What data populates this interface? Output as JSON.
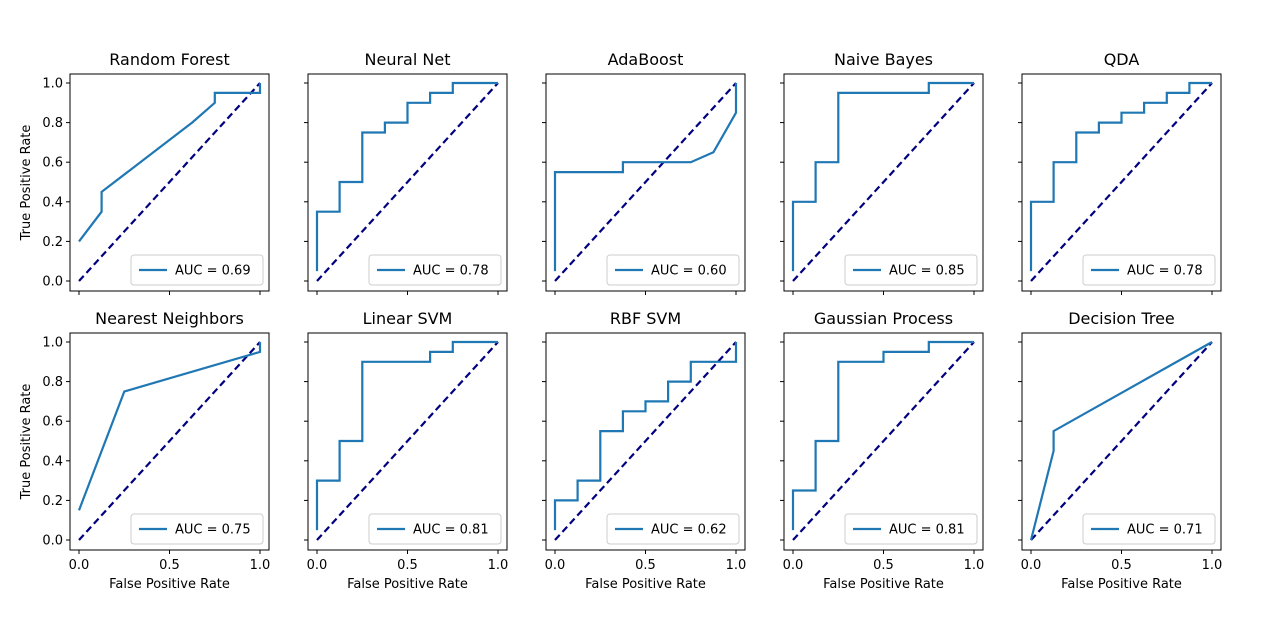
{
  "chart_data": {
    "type": "line",
    "layout": "2x5 grid",
    "xlabel": "False Positive Rate",
    "ylabel": "True Positive Rate",
    "xlim": [
      0,
      1
    ],
    "ylim": [
      0,
      1
    ],
    "xticks": [
      "0.0",
      "0.5",
      "1.0"
    ],
    "yticks": [
      "0.0",
      "0.2",
      "0.4",
      "0.6",
      "0.8",
      "1.0"
    ],
    "grid": false,
    "legend_position": "lower-right",
    "series_color": "#1f77b4",
    "reference_color": "#000080",
    "panels": [
      {
        "title": "Random Forest",
        "legend": "AUC = 0.69",
        "x": [
          0,
          0.125,
          0.125,
          0.625,
          0.75,
          0.75,
          1,
          1
        ],
        "y": [
          0.2,
          0.35,
          0.45,
          0.8,
          0.9,
          0.95,
          0.95,
          1
        ]
      },
      {
        "title": "Neural Net",
        "legend": "AUC = 0.78",
        "x": [
          0,
          0,
          0.125,
          0.125,
          0.25,
          0.25,
          0.375,
          0.375,
          0.5,
          0.5,
          0.625,
          0.625,
          0.75,
          0.75,
          1
        ],
        "y": [
          0.05,
          0.35,
          0.35,
          0.5,
          0.5,
          0.75,
          0.75,
          0.8,
          0.8,
          0.9,
          0.9,
          0.95,
          0.95,
          1,
          1
        ]
      },
      {
        "title": "AdaBoost",
        "legend": "AUC = 0.60",
        "x": [
          0,
          0,
          0.375,
          0.375,
          0.75,
          0.875,
          1,
          1
        ],
        "y": [
          0.05,
          0.55,
          0.55,
          0.6,
          0.6,
          0.65,
          0.85,
          1
        ]
      },
      {
        "title": "Naive Bayes",
        "legend": "AUC = 0.85",
        "x": [
          0,
          0,
          0.125,
          0.125,
          0.25,
          0.25,
          0.75,
          0.75,
          1
        ],
        "y": [
          0.05,
          0.4,
          0.4,
          0.6,
          0.6,
          0.95,
          0.95,
          1,
          1
        ]
      },
      {
        "title": "QDA",
        "legend": "AUC = 0.78",
        "x": [
          0,
          0,
          0.125,
          0.125,
          0.25,
          0.25,
          0.375,
          0.375,
          0.5,
          0.5,
          0.625,
          0.625,
          0.75,
          0.75,
          0.875,
          0.875,
          1
        ],
        "y": [
          0.05,
          0.4,
          0.4,
          0.6,
          0.6,
          0.75,
          0.75,
          0.8,
          0.8,
          0.85,
          0.85,
          0.9,
          0.9,
          0.95,
          0.95,
          1,
          1
        ]
      },
      {
        "title": "Nearest Neighbors",
        "legend": "AUC = 0.75",
        "x": [
          0,
          0.25,
          1,
          1
        ],
        "y": [
          0.15,
          0.75,
          0.95,
          1
        ]
      },
      {
        "title": "Linear SVM",
        "legend": "AUC = 0.81",
        "x": [
          0,
          0,
          0.125,
          0.125,
          0.25,
          0.25,
          0.625,
          0.625,
          0.75,
          0.75,
          1
        ],
        "y": [
          0.05,
          0.3,
          0.3,
          0.5,
          0.5,
          0.9,
          0.9,
          0.95,
          0.95,
          1,
          1
        ]
      },
      {
        "title": "RBF SVM",
        "legend": "AUC = 0.62",
        "x": [
          0,
          0,
          0.125,
          0.125,
          0.25,
          0.25,
          0.375,
          0.375,
          0.5,
          0.5,
          0.625,
          0.625,
          0.75,
          0.75,
          0.875,
          0.875,
          1,
          1
        ],
        "y": [
          0.05,
          0.2,
          0.2,
          0.3,
          0.3,
          0.55,
          0.55,
          0.65,
          0.65,
          0.7,
          0.7,
          0.8,
          0.8,
          0.9,
          0.9,
          0.9,
          0.9,
          1
        ]
      },
      {
        "title": "Gaussian Process",
        "legend": "AUC = 0.81",
        "x": [
          0,
          0,
          0.125,
          0.125,
          0.25,
          0.25,
          0.5,
          0.5,
          0.75,
          0.75,
          1
        ],
        "y": [
          0.05,
          0.25,
          0.25,
          0.5,
          0.5,
          0.9,
          0.9,
          0.95,
          0.95,
          1,
          1
        ]
      },
      {
        "title": "Decision Tree",
        "legend": "AUC = 0.71",
        "x": [
          0,
          0.125,
          0.125,
          1
        ],
        "y": [
          0,
          0.45,
          0.55,
          1
        ]
      }
    ]
  }
}
